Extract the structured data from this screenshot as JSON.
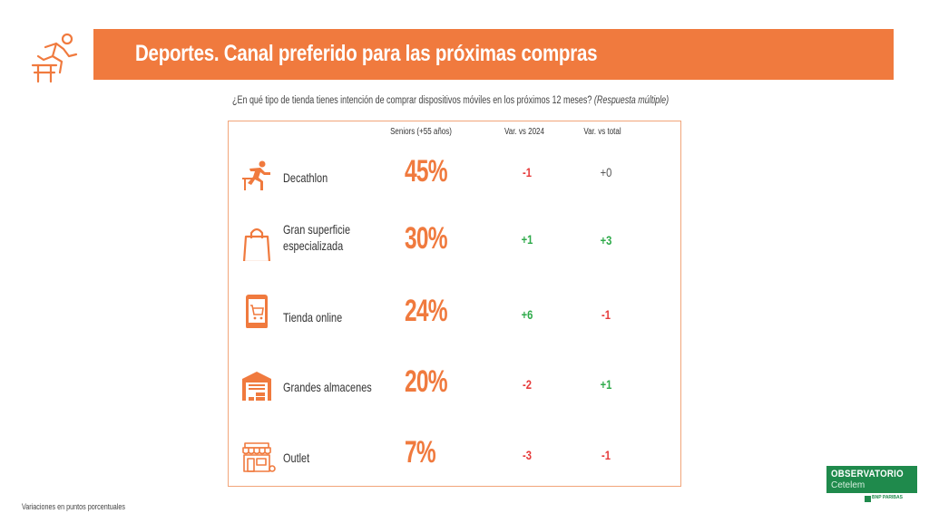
{
  "header": {
    "title": "Deportes. Canal preferido para las próximas compras",
    "icon": "hurdle-runner-icon",
    "color": "#f07a3e"
  },
  "question": {
    "text": "¿En qué tipo de tienda tienes intención de comprar dispositivos móviles en los próximos 12 meses?",
    "note": "(Respuesta múltiple)"
  },
  "table": {
    "columns": {
      "seniors": "Seniors (+55 años)",
      "var_2024": "Var. vs 2024",
      "var_total": "Var. vs total"
    },
    "rows": [
      {
        "label": "Decathlon",
        "value": "45%",
        "var_2024": "-1",
        "var_total": "+0",
        "icon": "runner-icon"
      },
      {
        "label": "Gran superficie especializada",
        "label_line1": "Gran superficie",
        "label_line2": "especializada",
        "value": "30%",
        "var_2024": "+1",
        "var_total": "+3",
        "icon": "shopping-bag-icon"
      },
      {
        "label": "Tienda online",
        "value": "24%",
        "var_2024": "+6",
        "var_total": "-1",
        "icon": "smartphone-cart-icon"
      },
      {
        "label": "Grandes almacenes",
        "value": "20%",
        "var_2024": "-2",
        "var_total": "+1",
        "icon": "warehouse-icon"
      },
      {
        "label": "Outlet",
        "value": "7%",
        "var_2024": "-3",
        "var_total": "-1",
        "icon": "storefront-icon"
      }
    ]
  },
  "footnote": "Variaciones en puntos porcentuales",
  "brand": {
    "name": "OBSERVATORIO",
    "sub": "Cetelem",
    "bank": "BNP PARIBAS",
    "color": "#1f8a4c"
  },
  "colors": {
    "accent": "#f07a3e",
    "negative": "#e63a3a",
    "positive": "#2eaa4a",
    "neutral": "#555555"
  }
}
